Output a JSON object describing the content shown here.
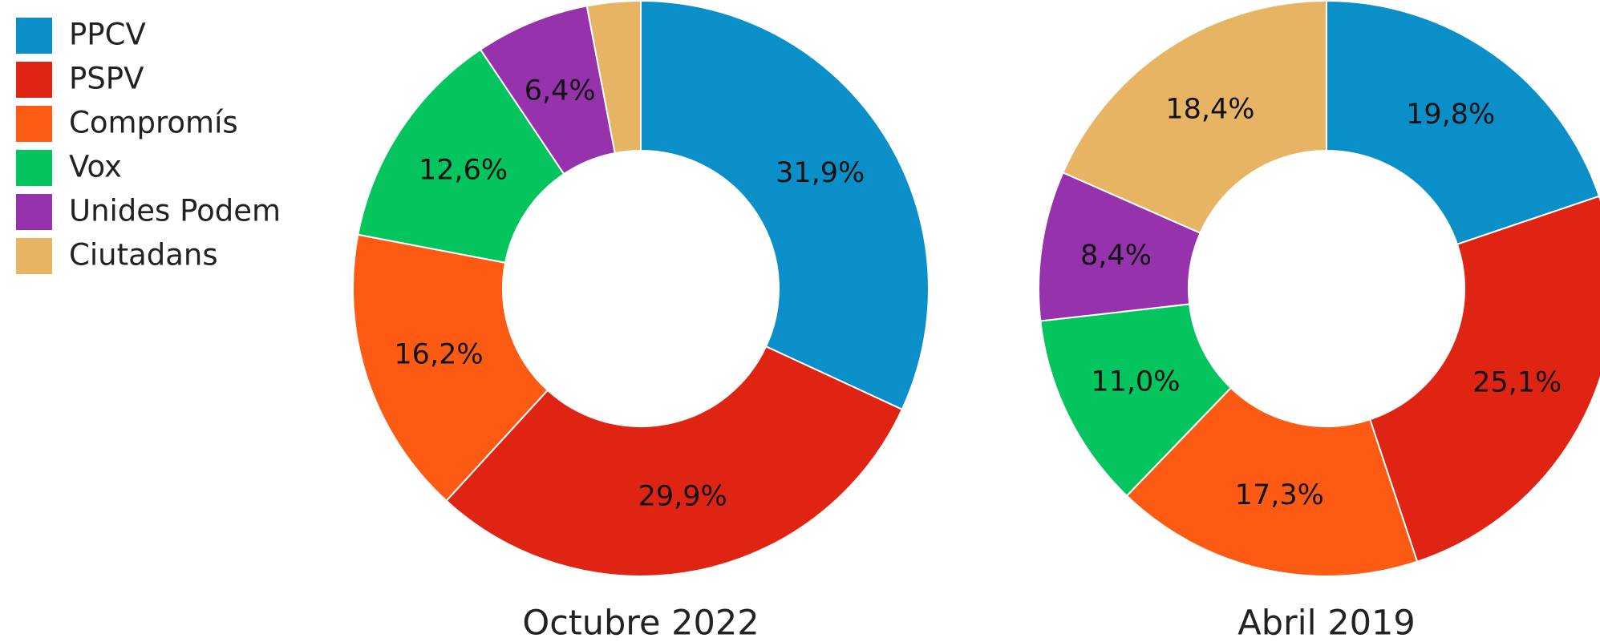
{
  "legend": {
    "categories": [
      "PPCV",
      "PSPV",
      "Compromís",
      "Vox",
      "Unides Podem",
      "Ciutadans"
    ],
    "colors": [
      "#0b8fc8",
      "#e02414",
      "#fd5a13",
      "#04c45d",
      "#9632ac",
      "#e7b464"
    ]
  },
  "chart_data": [
    {
      "type": "donut",
      "title": "Octubre 2022",
      "values": [
        31.9,
        29.9,
        16.2,
        12.6,
        6.4,
        3.0
      ],
      "value_labels": [
        "31,9%",
        "29,9%",
        "16,2%",
        "12,6%",
        "6,4%",
        null
      ]
    },
    {
      "type": "donut",
      "title": "Abril 2019",
      "values": [
        19.8,
        25.1,
        17.3,
        11.0,
        8.4,
        18.4
      ],
      "value_labels": [
        "19,8%",
        "25,1%",
        "17,3%",
        "11,0%",
        "8,4%",
        "18,4%"
      ]
    }
  ]
}
